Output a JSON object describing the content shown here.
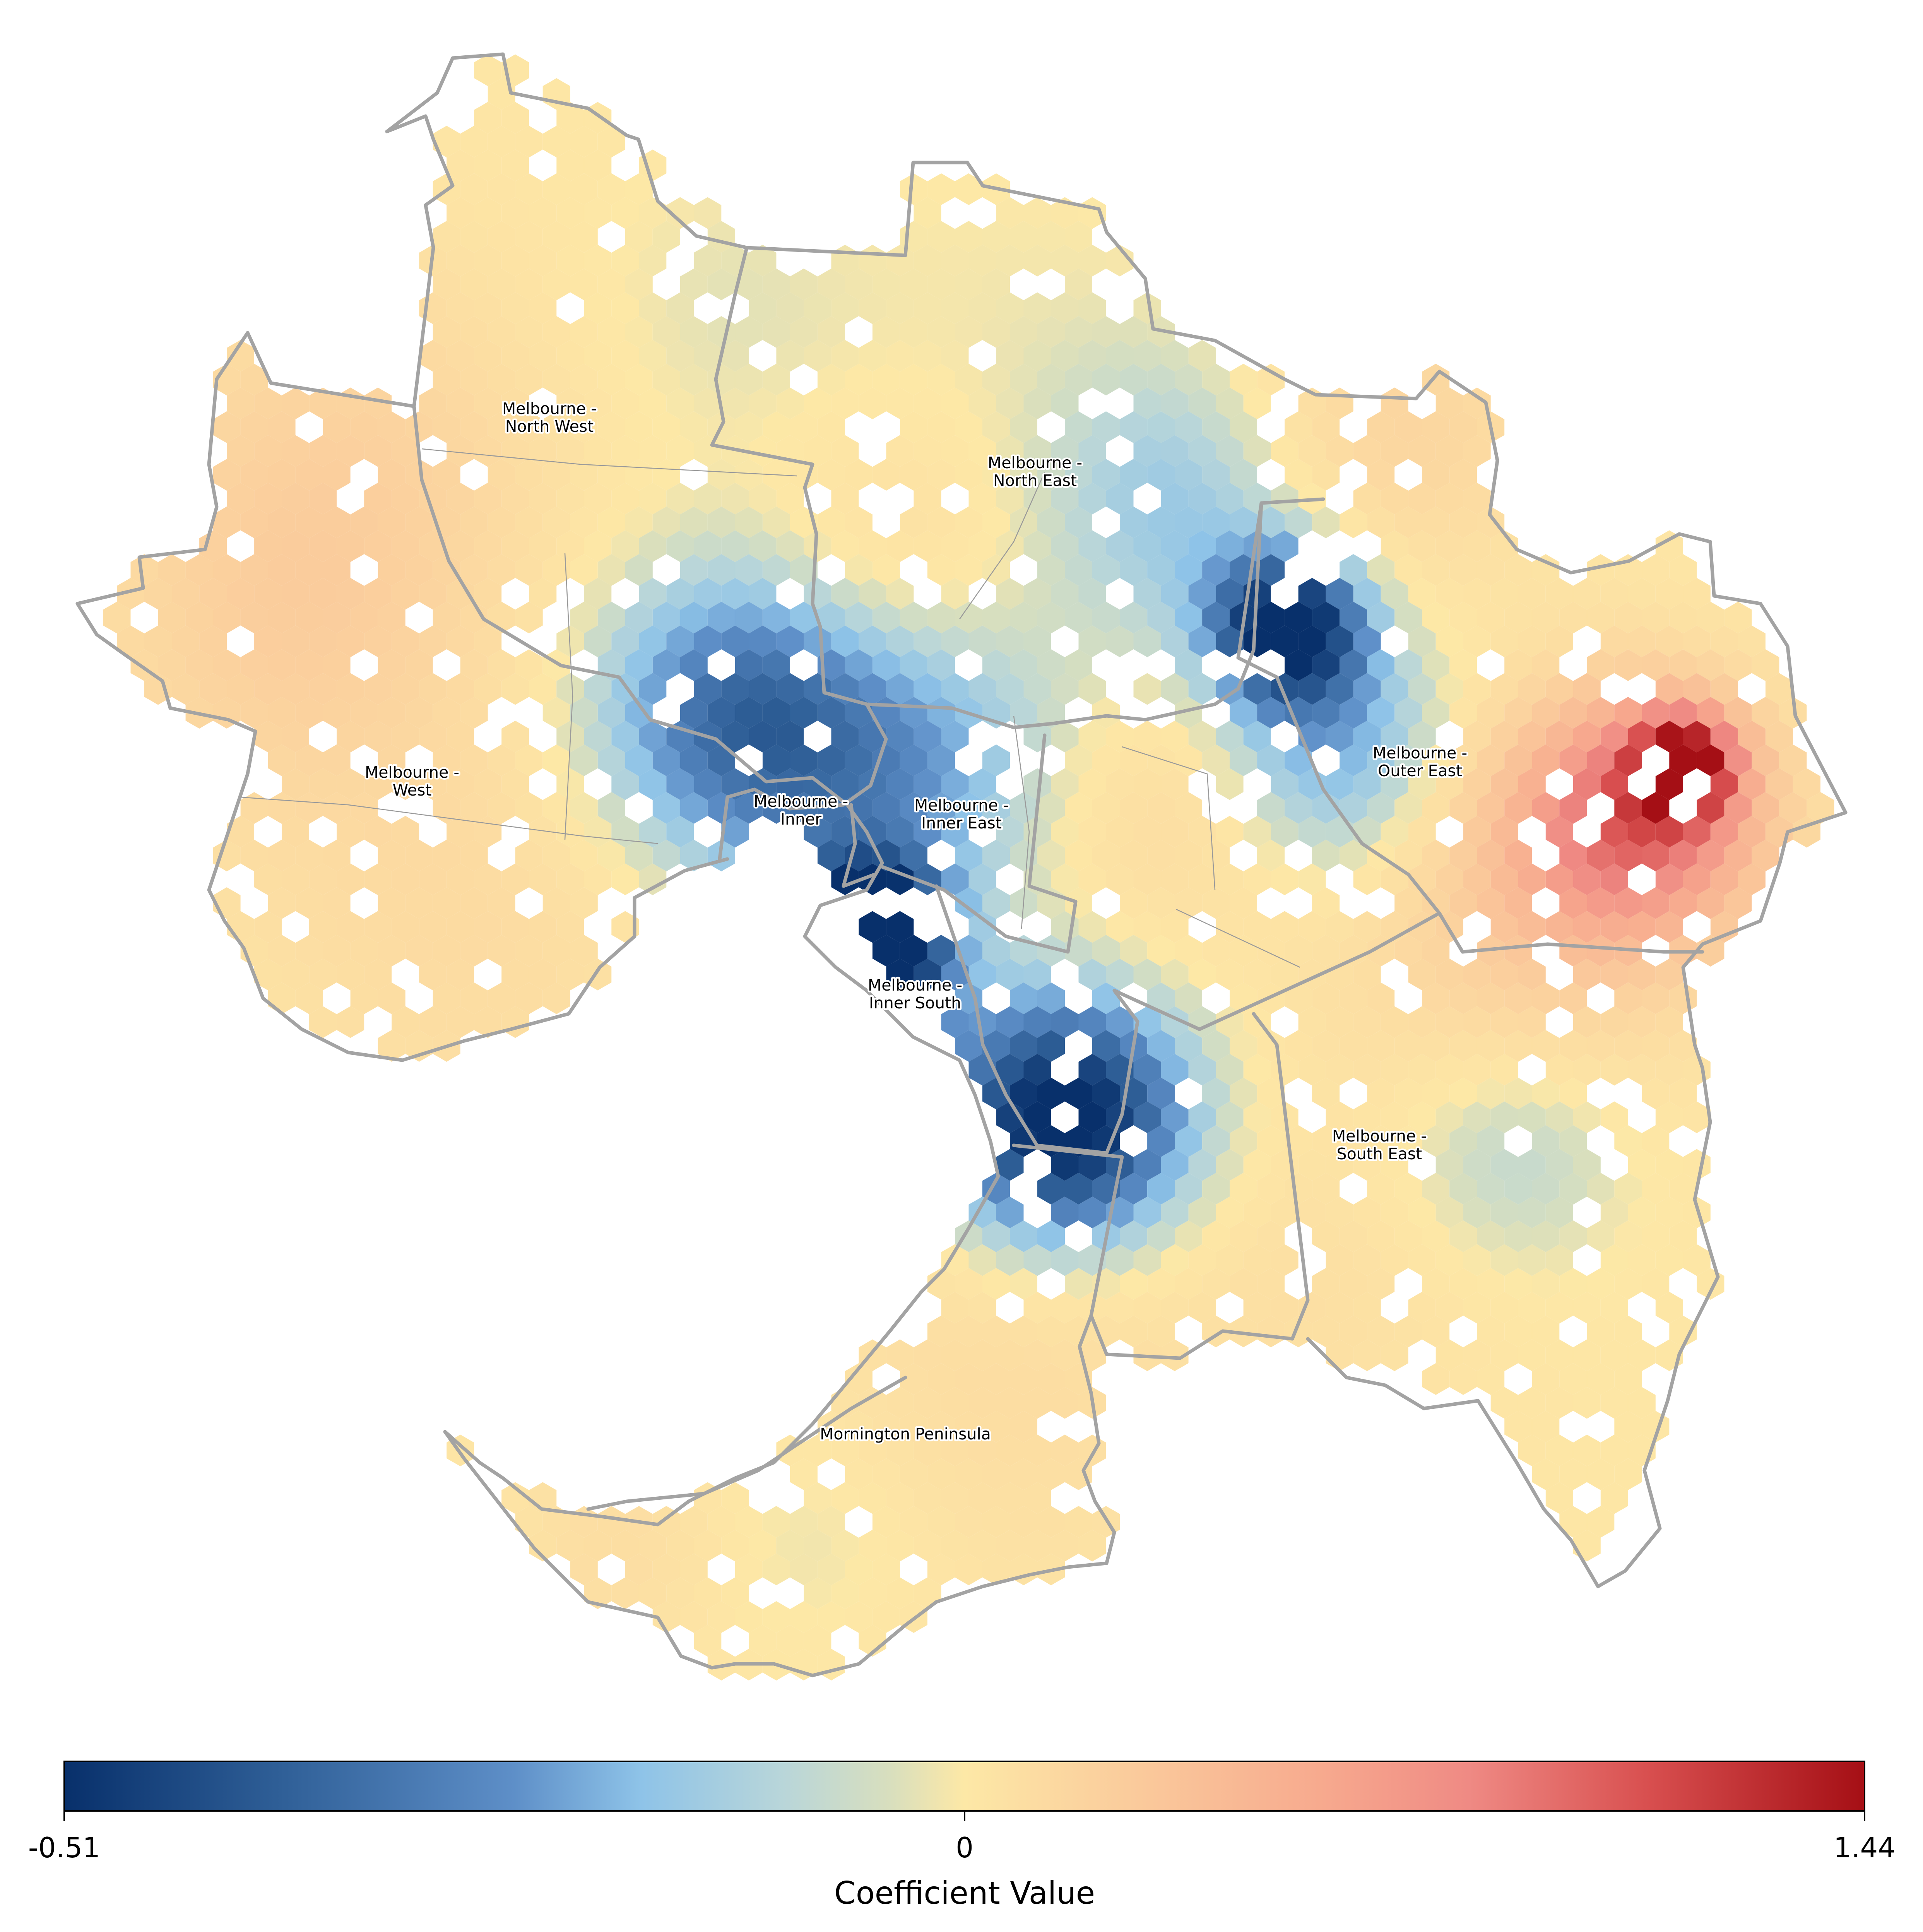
{
  "map": {
    "regions": [
      {
        "key": "north_west",
        "line1": "Melbourne -",
        "line2": "North West"
      },
      {
        "key": "north_east",
        "line1": "Melbourne -",
        "line2": "North East"
      },
      {
        "key": "west",
        "line1": "Melbourne -",
        "line2": "West"
      },
      {
        "key": "inner",
        "line1": "Melbourne -",
        "line2": "Inner"
      },
      {
        "key": "inner_east",
        "line1": "Melbourne -",
        "line2": "Inner East"
      },
      {
        "key": "outer_east",
        "line1": "Melbourne -",
        "line2": "Outer East"
      },
      {
        "key": "inner_south",
        "line1": "Melbourne -",
        "line2": "Inner South"
      },
      {
        "key": "south_east",
        "line1": "Melbourne -",
        "line2": "South East"
      },
      {
        "key": "mornington",
        "line1": "Mornington Peninsula",
        "line2": ""
      }
    ]
  },
  "colorbar": {
    "title": "Coefficient Value",
    "min": -0.51,
    "mid": 0,
    "max": 1.44,
    "tick_labels": [
      "-0.51",
      "0",
      "1.44"
    ],
    "colors": [
      "#08306b",
      "#2f5f97",
      "#5e8fc8",
      "#8ec3e8",
      "#b9d6d9",
      "#d9dfbd",
      "#fde8a6",
      "#fac99b",
      "#f7a98e",
      "#ef8a84",
      "#d84f4f",
      "#a50f15"
    ]
  }
}
